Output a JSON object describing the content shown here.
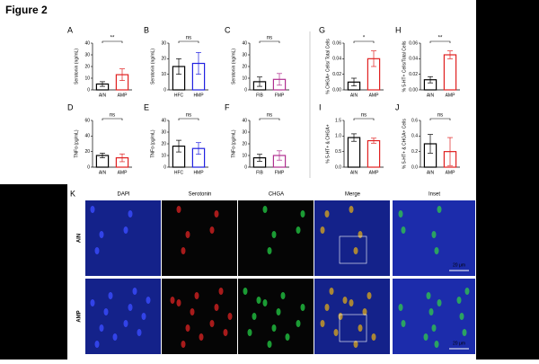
{
  "figure_label": "Figure 2",
  "chart_data": [
    {
      "panel": "A",
      "type": "bar",
      "ylabel": "Serotonin (ng/mL)",
      "categories": [
        "AIN",
        "AMP"
      ],
      "values": [
        5,
        13
      ],
      "errors": [
        2,
        5
      ],
      "colors": [
        "#000000",
        "#e02020"
      ],
      "ylim": [
        0,
        40
      ],
      "yticks": [
        0,
        10,
        20,
        30,
        40
      ],
      "significance": "**"
    },
    {
      "panel": "B",
      "type": "bar",
      "ylabel": "Serotonin (ng/mL)",
      "categories": [
        "HFC",
        "HMP"
      ],
      "values": [
        15,
        17
      ],
      "errors": [
        5,
        7
      ],
      "colors": [
        "#000000",
        "#2020e0"
      ],
      "ylim": [
        0,
        30
      ],
      "yticks": [
        0,
        10,
        20,
        30
      ],
      "significance": "ns"
    },
    {
      "panel": "C",
      "type": "bar",
      "ylabel": "Serotonin (ng/mL)",
      "categories": [
        "FIB",
        "FMP"
      ],
      "values": [
        7,
        9
      ],
      "errors": [
        4,
        5
      ],
      "colors": [
        "#000000",
        "#b03090"
      ],
      "ylim": [
        0,
        40
      ],
      "yticks": [
        0,
        10,
        20,
        30,
        40
      ],
      "significance": "ns"
    },
    {
      "panel": "G",
      "type": "bar",
      "ylabel": "% CHGA+ Cells/ Total Cells",
      "categories": [
        "AIN",
        "AMP"
      ],
      "values": [
        0.01,
        0.04
      ],
      "errors": [
        0.005,
        0.01
      ],
      "colors": [
        "#000000",
        "#e02020"
      ],
      "ylim": [
        0,
        0.06
      ],
      "yticks": [
        {
          "value": 0,
          "label": "0.00"
        },
        {
          "value": 0.02,
          "label": "0.02"
        },
        {
          "value": 0.04,
          "label": "0.04"
        },
        {
          "value": 0.06,
          "label": "0.06"
        }
      ],
      "significance": "*"
    },
    {
      "panel": "H",
      "type": "bar",
      "ylabel": "% 5-HT+ Cells/Total Cells",
      "categories": [
        "AIN",
        "AMP"
      ],
      "values": [
        0.013,
        0.045
      ],
      "errors": [
        0.004,
        0.005
      ],
      "colors": [
        "#000000",
        "#e02020"
      ],
      "ylim": [
        0,
        0.06
      ],
      "yticks": [
        {
          "value": 0,
          "label": "0.00"
        },
        {
          "value": 0.02,
          "label": "0.02"
        },
        {
          "value": 0.04,
          "label": "0.04"
        },
        {
          "value": 0.06,
          "label": "0.06"
        }
      ],
      "significance": "**"
    },
    {
      "panel": "D",
      "type": "bar",
      "ylabel": "TNFα (pg/mL)",
      "categories": [
        "AIN",
        "AMP"
      ],
      "values": [
        15,
        12
      ],
      "errors": [
        3,
        5
      ],
      "colors": [
        "#000000",
        "#e02020"
      ],
      "ylim": [
        0,
        60
      ],
      "yticks": [
        0,
        20,
        40,
        60
      ],
      "significance": "ns"
    },
    {
      "panel": "E",
      "type": "bar",
      "ylabel": "TNFα (pg/mL)",
      "categories": [
        "HFC",
        "HMP"
      ],
      "values": [
        18,
        16
      ],
      "errors": [
        5,
        5
      ],
      "colors": [
        "#000000",
        "#2020e0"
      ],
      "ylim": [
        0,
        40
      ],
      "yticks": [
        0,
        10,
        20,
        30,
        40
      ],
      "significance": "ns"
    },
    {
      "panel": "F",
      "type": "bar",
      "ylabel": "TNFα (pg/mL)",
      "categories": [
        "FIB",
        "FMP"
      ],
      "values": [
        8,
        10
      ],
      "errors": [
        3,
        4
      ],
      "colors": [
        "#000000",
        "#b03090"
      ],
      "ylim": [
        0,
        40
      ],
      "yticks": [
        0,
        10,
        20,
        30,
        40
      ],
      "significance": "ns"
    },
    {
      "panel": "I",
      "type": "bar",
      "ylabel": "% 5-HT+ & CHGA+",
      "categories": [
        "AIN",
        "AMP"
      ],
      "values": [
        0.95,
        0.85
      ],
      "errors": [
        0.12,
        0.08
      ],
      "colors": [
        "#000000",
        "#e02020"
      ],
      "ylim": [
        0,
        1.5
      ],
      "yticks": [
        {
          "value": 0,
          "label": "0.0"
        },
        {
          "value": 0.5,
          "label": "0.5"
        },
        {
          "value": 1,
          "label": "1.0"
        },
        {
          "value": 1.5,
          "label": "1.5"
        }
      ],
      "significance": "ns"
    },
    {
      "panel": "J",
      "type": "bar",
      "ylabel": "% 5-HT+ & CHGA+ Cells",
      "categories": [
        "AIN",
        "AMP"
      ],
      "values": [
        0.3,
        0.2
      ],
      "errors": [
        0.12,
        0.18
      ],
      "colors": [
        "#000000",
        "#e02020"
      ],
      "ylim": [
        0,
        0.6
      ],
      "yticks": [
        {
          "value": 0,
          "label": "0.0"
        },
        {
          "value": 0.2,
          "label": "0.2"
        },
        {
          "value": 0.4,
          "label": "0.4"
        },
        {
          "value": 0.6,
          "label": "0.6"
        }
      ],
      "significance": "ns"
    }
  ],
  "micrograph": {
    "panel": "K",
    "columns": [
      "DAPI",
      "Serotonin",
      "CHGA",
      "Merge",
      "Inset"
    ],
    "rows": [
      "AIN",
      "AMP"
    ],
    "scale_bar": "20 μm"
  }
}
